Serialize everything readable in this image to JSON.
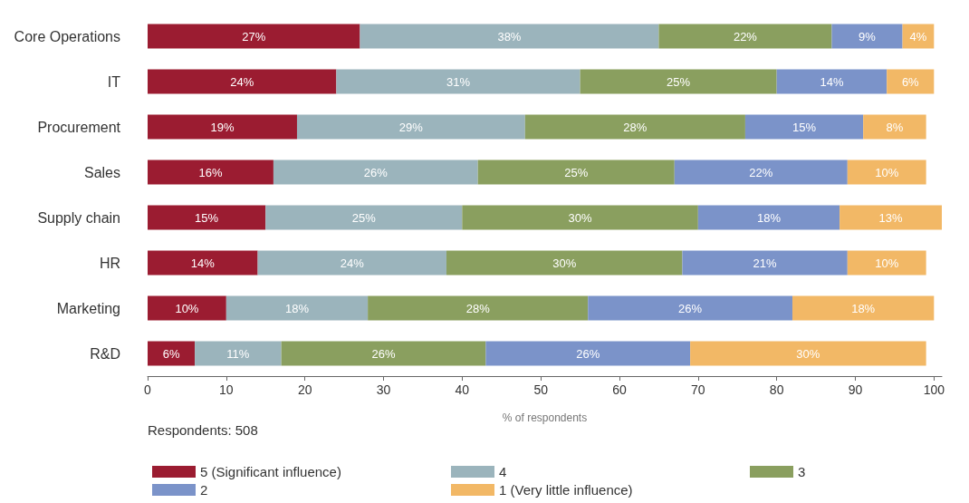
{
  "chart_data": {
    "type": "bar",
    "orientation": "horizontal",
    "stacked": true,
    "grid": false,
    "legend": "bottom",
    "xlabel": "% of respondents",
    "annotations": [
      "Respondents: 508"
    ],
    "categories": [
      "Core Operations",
      "IT",
      "Procurement",
      "Sales",
      "Supply chain",
      "HR",
      "Marketing",
      "R&D"
    ],
    "xlim": [
      0,
      101
    ],
    "xticks": [
      0,
      10,
      20,
      30,
      40,
      50,
      60,
      70,
      80,
      90,
      100
    ],
    "series": [
      {
        "name": "5 (Significant influence)",
        "color": "#9b1c31",
        "values": [
          27,
          24,
          19,
          16,
          15,
          14,
          10,
          6
        ],
        "value_labels": [
          "27%",
          "24%",
          "19%",
          "16%",
          "15%",
          "14%",
          "10%",
          "6%"
        ]
      },
      {
        "name": "4",
        "color": "#9bb4bc",
        "values": [
          38,
          31,
          29,
          26,
          25,
          24,
          18,
          11
        ],
        "value_labels": [
          "38%",
          "31%",
          "29%",
          "26%",
          "25%",
          "24%",
          "18%",
          "11%"
        ]
      },
      {
        "name": "3",
        "color": "#8a9f5f",
        "values": [
          22,
          25,
          28,
          25,
          30,
          30,
          28,
          26
        ],
        "value_labels": [
          "22%",
          "25%",
          "28%",
          "25%",
          "30%",
          "30%",
          "28%",
          "26%"
        ]
      },
      {
        "name": "2",
        "color": "#7b93c9",
        "values": [
          9,
          14,
          15,
          22,
          18,
          21,
          26,
          26
        ],
        "value_labels": [
          "9%",
          "14%",
          "15%",
          "22%",
          "18%",
          "21%",
          "26%",
          "26%"
        ]
      },
      {
        "name": "1 (Very little influence)",
        "color": "#f2b866",
        "values": [
          4,
          6,
          8,
          10,
          13,
          10,
          18,
          30
        ],
        "value_labels": [
          "4%",
          "6%",
          "8%",
          "10%",
          "13%",
          "10%",
          "18%",
          "30%"
        ]
      }
    ]
  }
}
